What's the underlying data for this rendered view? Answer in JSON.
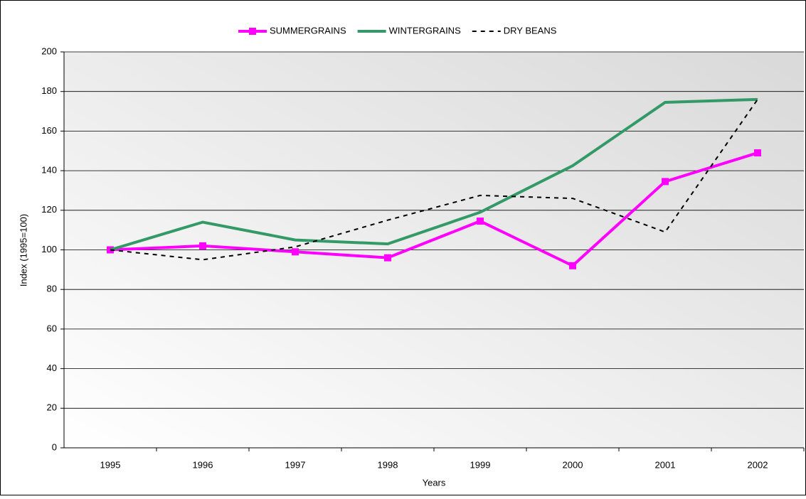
{
  "chart_data": {
    "type": "line",
    "x_label": "Years",
    "y_label": "Index (1995=100)",
    "categories": [
      "1995",
      "1996",
      "1997",
      "1998",
      "1999",
      "2000",
      "2001",
      "2002"
    ],
    "series": [
      {
        "name": "SUMMERGRAINS",
        "color": "#ff00ff",
        "marker": "square",
        "dashed": false,
        "values": [
          100,
          102,
          99,
          96,
          114.5,
          92,
          134.5,
          149
        ]
      },
      {
        "name": "WINTERGRAINS",
        "color": "#339966",
        "marker": null,
        "dashed": false,
        "values": [
          100,
          114,
          105,
          103,
          119,
          142.5,
          174.5,
          176
        ]
      },
      {
        "name": "DRY BEANS",
        "color": "#000000",
        "marker": null,
        "dashed": true,
        "values": [
          100,
          95,
          101.5,
          115,
          127.5,
          126,
          109,
          176
        ]
      }
    ],
    "ylim": [
      0,
      200
    ],
    "yticks": [
      0,
      20,
      40,
      60,
      80,
      100,
      120,
      140,
      160,
      180,
      200
    ],
    "grid": true,
    "legend": "top"
  }
}
